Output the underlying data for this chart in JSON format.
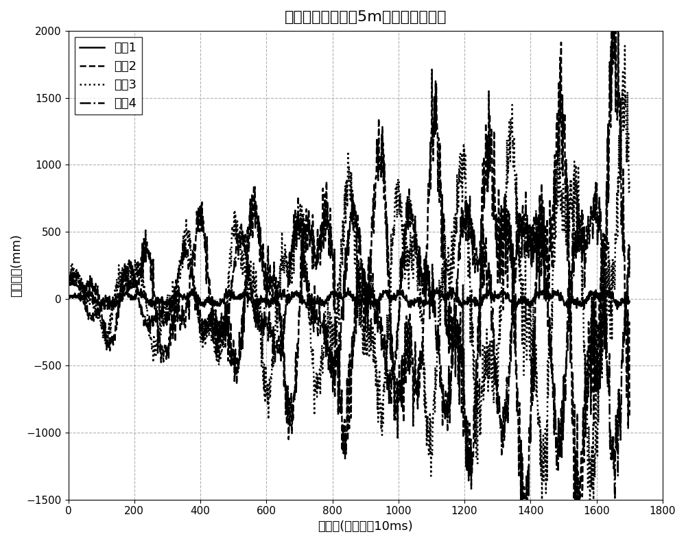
{
  "title": "四旋翼飞行器跟踪5m高度稳态误差图",
  "xlabel": "采样点(两点间隔10ms)",
  "ylabel": "稳态误差(mm)",
  "xlim": [
    0,
    1800
  ],
  "ylim": [
    -1500,
    2000
  ],
  "xticks": [
    0,
    200,
    400,
    600,
    800,
    1000,
    1200,
    1400,
    1600,
    1800
  ],
  "yticks": [
    -1500,
    -1000,
    -500,
    0,
    500,
    1000,
    1500,
    2000
  ],
  "legend_labels": [
    "条件1",
    "条件2",
    "条件3",
    "条件4"
  ],
  "line_styles": [
    "-",
    "--",
    ":",
    "-."
  ],
  "line_color": "#000000",
  "line_width": 1.8,
  "grid_color": "#aaaaaa",
  "grid_style": "--",
  "background_color": "#ffffff",
  "n_points": 1700,
  "seed": 42
}
